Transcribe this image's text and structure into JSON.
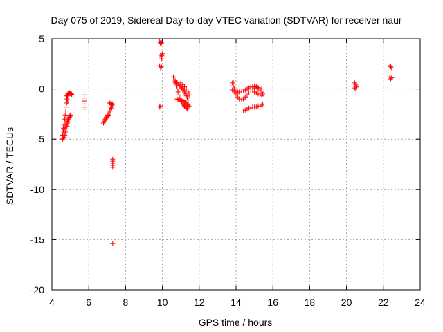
{
  "chart_data": {
    "type": "scatter",
    "title": "Day 075 of 2019, Sidereal Day-to-day VTEC variation (SDTVAR) for receiver naur",
    "xlabel": "GPS time / hours",
    "ylabel": "SDTVAR / TECUs",
    "xlim": [
      4,
      24
    ],
    "ylim": [
      -20,
      5
    ],
    "xticks": [
      4,
      6,
      8,
      10,
      12,
      14,
      16,
      18,
      20,
      22,
      24
    ],
    "yticks": [
      5,
      0,
      -5,
      -10,
      -15,
      -20
    ],
    "xtick_labels": [
      "4",
      "6",
      "8",
      "10",
      "12",
      "14",
      "16",
      "18",
      "20",
      "22",
      "24"
    ],
    "ytick_labels": [
      "5",
      "0",
      "-5",
      "-10",
      "-15",
      "-20"
    ],
    "grid": true,
    "marker": "+",
    "marker_color": "#ff0000",
    "series": [
      {
        "name": "SDTVAR",
        "x": [
          4.55,
          4.57,
          4.6,
          4.62,
          4.65,
          4.67,
          4.7,
          4.72,
          4.75,
          4.77,
          4.8,
          4.82,
          4.85,
          4.87,
          4.9,
          4.55,
          4.58,
          4.62,
          4.66,
          4.7,
          4.74,
          4.78,
          4.82,
          4.86,
          4.9,
          4.94,
          4.98,
          4.6,
          4.64,
          4.68,
          4.72,
          4.76,
          4.8,
          4.84,
          4.88,
          4.92,
          4.96,
          5.0,
          5.02,
          4.85,
          4.88,
          4.9,
          4.93,
          4.95,
          4.98,
          5.0,
          5.02,
          5.05,
          5.08,
          4.8,
          4.82,
          4.84,
          4.86,
          5.75,
          5.75,
          5.75,
          5.75,
          5.75,
          5.75,
          5.75,
          6.8,
          6.85,
          6.9,
          6.95,
          7.0,
          7.05,
          7.1,
          7.15,
          7.2,
          7.25,
          7.3,
          6.85,
          6.9,
          6.95,
          7.0,
          7.05,
          7.1,
          7.15,
          7.2,
          7.25,
          7.1,
          7.15,
          7.2,
          7.25,
          7.28,
          7.3,
          7.3,
          7.3,
          7.3,
          7.3,
          7.3,
          9.85,
          9.88,
          9.9,
          9.93,
          9.95,
          9.9,
          9.92,
          9.95,
          9.97,
          10.0,
          9.85,
          9.9,
          9.95,
          9.85,
          9.9,
          10.6,
          10.65,
          10.7,
          10.75,
          10.8,
          10.85,
          10.9,
          10.95,
          11.0,
          11.05,
          11.1,
          11.15,
          11.2,
          11.25,
          11.3,
          11.35,
          10.65,
          10.7,
          10.75,
          10.8,
          10.85,
          10.9,
          10.95,
          11.0,
          11.05,
          11.1,
          11.15,
          11.2,
          11.25,
          11.3,
          11.35,
          11.4,
          10.8,
          10.85,
          10.9,
          10.95,
          11.0,
          11.05,
          11.1,
          11.15,
          11.2,
          11.25,
          11.3,
          11.35,
          11.4,
          11.45,
          11.0,
          11.1,
          11.2,
          11.3,
          11.4,
          11.45,
          13.8,
          13.85,
          13.9,
          13.95,
          14.0,
          14.1,
          14.2,
          14.3,
          14.4,
          14.5,
          14.6,
          14.7,
          14.8,
          14.9,
          15.0,
          15.1,
          15.2,
          15.3,
          15.4,
          13.8,
          13.9,
          14.0,
          14.1,
          14.2,
          14.3,
          14.4,
          14.5,
          14.6,
          14.7,
          14.8,
          14.9,
          15.0,
          15.1,
          15.2,
          15.3,
          15.4,
          15.45,
          14.4,
          14.5,
          14.6,
          14.7,
          14.8,
          14.9,
          15.0,
          15.1,
          15.2,
          15.3,
          15.4,
          15.45,
          14.9,
          15.0,
          15.1,
          15.2,
          15.3,
          15.4,
          13.85,
          20.45,
          20.5,
          20.55,
          20.45,
          20.5,
          20.55,
          22.35,
          22.4,
          22.45,
          22.35,
          22.4,
          22.45
        ],
        "y": [
          -4.9,
          -4.6,
          -4.2,
          -3.9,
          -3.6,
          -3.3,
          -3.0,
          -2.6,
          -2.2,
          -1.8,
          -1.4,
          -1.0,
          -0.7,
          -0.5,
          -0.4,
          -4.9,
          -5.0,
          -4.9,
          -4.8,
          -4.6,
          -4.3,
          -4.0,
          -3.7,
          -3.4,
          -3.1,
          -2.8,
          -2.6,
          -4.4,
          -4.2,
          -4.0,
          -3.8,
          -3.6,
          -3.4,
          -3.2,
          -3.0,
          -2.9,
          -2.8,
          -2.7,
          -2.6,
          -0.6,
          -0.5,
          -0.45,
          -0.4,
          -0.4,
          -0.4,
          -0.45,
          -0.5,
          -0.5,
          -0.55,
          -0.7,
          -0.9,
          -1.1,
          -1.3,
          -0.2,
          -0.6,
          -0.9,
          -1.2,
          -1.5,
          -1.8,
          -2.0,
          -3.4,
          -3.2,
          -3.0,
          -2.8,
          -2.6,
          -2.4,
          -2.2,
          -2.0,
          -1.8,
          -1.6,
          -1.5,
          -3.2,
          -3.0,
          -2.9,
          -2.8,
          -2.7,
          -2.6,
          -2.4,
          -2.2,
          -1.9,
          -1.4,
          -1.4,
          -1.45,
          -1.5,
          -1.6,
          -7.0,
          -7.2,
          -7.4,
          -7.6,
          -7.8,
          -15.4,
          4.7,
          4.6,
          4.5,
          4.55,
          4.6,
          3.4,
          3.2,
          3.0,
          3.3,
          3.5,
          2.3,
          2.1,
          2.2,
          -1.8,
          -1.7,
          1.2,
          0.9,
          0.6,
          0.3,
          0.0,
          -0.3,
          -0.6,
          -0.9,
          -1.1,
          -1.3,
          -1.5,
          -1.6,
          -1.7,
          -1.8,
          -1.9,
          -2.0,
          0.7,
          0.8,
          0.7,
          0.6,
          0.5,
          0.4,
          0.3,
          0.2,
          0.1,
          0.0,
          -0.1,
          -0.3,
          -0.5,
          -0.7,
          -0.9,
          -1.1,
          -1.0,
          -1.05,
          -1.1,
          -1.1,
          -1.15,
          -1.2,
          -1.2,
          -1.25,
          -1.3,
          -1.3,
          -1.4,
          -1.5,
          -1.6,
          -1.7,
          0.6,
          0.4,
          0.2,
          0.0,
          -0.3,
          -0.6,
          0.6,
          0.3,
          0.0,
          -0.3,
          -0.5,
          -0.8,
          -1.0,
          -1.1,
          -1.0,
          -0.8,
          -0.6,
          -0.4,
          -0.2,
          0.0,
          0.1,
          0.2,
          0.15,
          0.1,
          0.0,
          -0.1,
          -0.2,
          -0.3,
          -0.3,
          -0.3,
          -0.2,
          -0.2,
          -0.1,
          0.0,
          0.1,
          0.2,
          0.2,
          0.3,
          0.2,
          0.1,
          -0.1,
          -0.3,
          -0.5,
          -2.2,
          -2.1,
          -2.0,
          -1.9,
          -1.9,
          -1.8,
          -1.8,
          -1.8,
          -1.7,
          -1.7,
          -1.6,
          -1.5,
          -0.2,
          -0.3,
          -0.4,
          -0.5,
          -0.6,
          -0.7,
          0.7,
          0.6,
          0.4,
          0.2,
          0.1,
          0.0,
          0.2,
          2.3,
          2.2,
          2.1,
          1.2,
          1.0,
          1.1
        ]
      }
    ]
  }
}
